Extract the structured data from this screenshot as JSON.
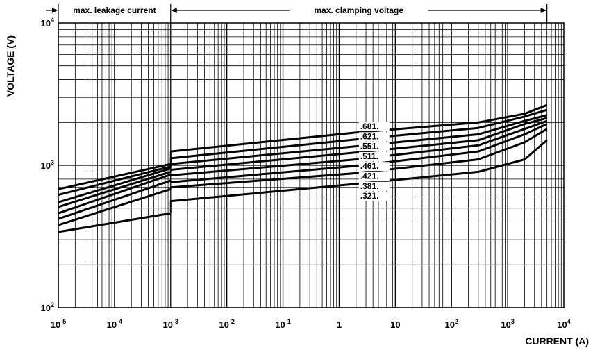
{
  "chart_data": {
    "type": "line",
    "xlabel": "CURRENT (A)",
    "ylabel": "VOLTAGE (V)",
    "x_scale": "log",
    "y_scale": "log",
    "xlim": [
      1e-05,
      10000
    ],
    "ylim": [
      100,
      10000
    ],
    "grid": true,
    "x_ticks": [
      {
        "value": 1e-05,
        "base": "10",
        "exp": "-5"
      },
      {
        "value": 0.0001,
        "base": "10",
        "exp": "-4"
      },
      {
        "value": 0.001,
        "base": "10",
        "exp": "-3"
      },
      {
        "value": 0.01,
        "base": "10",
        "exp": "-2"
      },
      {
        "value": 0.1,
        "base": "10",
        "exp": "-1"
      },
      {
        "value": 1,
        "base": "1",
        "exp": ""
      },
      {
        "value": 10,
        "base": "10",
        "exp": ""
      },
      {
        "value": 100,
        "base": "10",
        "exp": "2"
      },
      {
        "value": 1000,
        "base": "10",
        "exp": "3"
      },
      {
        "value": 10000,
        "base": "10",
        "exp": "4"
      }
    ],
    "y_ticks": [
      {
        "value": 100,
        "base": "10",
        "exp": "2"
      },
      {
        "value": 1000,
        "base": "10",
        "exp": "3"
      },
      {
        "value": 10000,
        "base": "10",
        "exp": "4"
      }
    ],
    "regions": [
      {
        "label": "max. leakage current",
        "x_range": [
          1e-05,
          0.001
        ]
      },
      {
        "label": "max. clamping voltage",
        "x_range": [
          0.001,
          5000
        ]
      }
    ],
    "leakage_current_x": [
      1e-05,
      0.001
    ],
    "clamping_current_x": [
      0.001,
      2,
      300,
      2000,
      5000
    ],
    "series": [
      {
        "name": ".681.",
        "leakage_voltage": [
          680,
          1020
        ],
        "clamping_voltage": [
          1250,
          1700,
          2000,
          2300,
          2650
        ]
      },
      {
        "name": ".621.",
        "leakage_voltage": [
          620,
          980
        ],
        "clamping_voltage": [
          1120,
          1520,
          1830,
          2200,
          2450
        ]
      },
      {
        "name": ".551.",
        "leakage_voltage": [
          550,
          950
        ],
        "clamping_voltage": [
          1020,
          1360,
          1650,
          2050,
          2250
        ]
      },
      {
        "name": ".511.",
        "leakage_voltage": [
          510,
          900
        ],
        "clamping_voltage": [
          930,
          1230,
          1500,
          1950,
          2150
        ]
      },
      {
        "name": ".461.",
        "leakage_voltage": [
          460,
          860
        ],
        "clamping_voltage": [
          850,
          1100,
          1380,
          1800,
          2050
        ]
      },
      {
        "name": ".421.",
        "leakage_voltage": [
          420,
          780
        ],
        "clamping_voltage": [
          760,
          990,
          1250,
          1650,
          1950
        ]
      },
      {
        "name": ".381.",
        "leakage_voltage": [
          380,
          680
        ],
        "clamping_voltage": [
          700,
          880,
          1100,
          1450,
          1800
        ]
      },
      {
        "name": ".321.",
        "leakage_voltage": [
          340,
          460
        ],
        "clamping_voltage": [
          560,
          740,
          900,
          1100,
          1500
        ]
      }
    ]
  }
}
